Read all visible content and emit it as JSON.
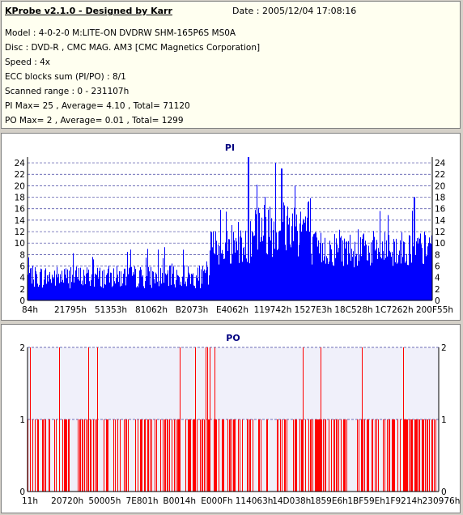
{
  "header": {
    "title": "KProbe v2.1.0 - Designed by Karr",
    "date": "Date : 2005/12/04 17:08:16",
    "lines": [
      "Model : 4-0-2-0 M:LITE-ON DVDRW SHM-165P6S MS0A",
      "Disc : DVD-R , CMC MAG. AM3 [CMC Magnetics Corporation]",
      "Speed : 4x",
      "ECC blocks sum (PI/PO) : 8/1",
      "Scanned range : 0 - 231107h",
      "PI Max= 25 , Average= 4.10 , Total= 71120",
      "PO Max= 2 , Average= 0.01 , Total= 1299"
    ]
  },
  "colors": {
    "pi": "#0000ff",
    "po": "#ff0000",
    "grid": "#4040a0",
    "frame_bg": "#ffffff",
    "plot_bg_po": "#f0f0fa"
  },
  "chart_data": [
    {
      "type": "bar",
      "title": "PI",
      "x_tick_labels": [
        "84h",
        "21795h",
        "51353h",
        "81062h",
        "B2073h",
        "E4062h",
        "119742h",
        "1527E3h",
        "18C528h",
        "1C7262h",
        "200F55h"
      ],
      "x_range": [
        0,
        231107
      ],
      "ylim": [
        0,
        25
      ],
      "y_ticks": [
        0,
        2,
        4,
        6,
        8,
        10,
        12,
        14,
        16,
        18,
        20,
        22,
        24
      ],
      "grid": true,
      "segments": [
        {
          "x_start": 0,
          "x_end": 0.45,
          "base": 3.5,
          "spread": 2.5
        },
        {
          "x_start": 0.45,
          "x_end": 0.55,
          "base": 8.5,
          "spread": 4.0
        },
        {
          "x_start": 0.55,
          "x_end": 0.7,
          "base": 11.5,
          "spread": 7.0
        },
        {
          "x_start": 0.7,
          "x_end": 1.0,
          "base": 8.0,
          "spread": 4.0
        }
      ],
      "peaks": [
        {
          "x": 0.545,
          "value": 25
        },
        {
          "x": 0.612,
          "value": 24
        },
        {
          "x": 0.627,
          "value": 23
        },
        {
          "x": 0.66,
          "value": 20
        },
        {
          "x": 0.955,
          "value": 18
        }
      ]
    },
    {
      "type": "bar",
      "title": "PO",
      "x_tick_labels": [
        "11h",
        "20720h",
        "50005h",
        "7E801h",
        "B0014h",
        "E000Fh",
        "114063h",
        "14D038h",
        "1859E6h",
        "1BF59Eh",
        "1F9214h",
        "230976h"
      ],
      "x_range": [
        0,
        231107
      ],
      "ylim": [
        0,
        2
      ],
      "y_ticks": [
        0,
        1,
        2
      ],
      "grid": true,
      "value_levels": [
        0,
        1,
        2
      ]
    }
  ]
}
